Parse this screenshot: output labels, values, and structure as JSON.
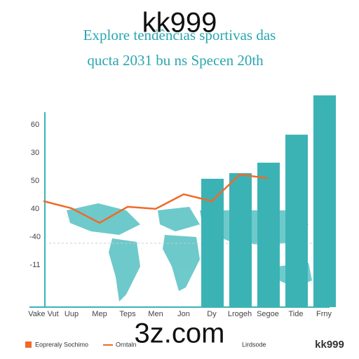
{
  "watermark_top": "kk999",
  "watermark_bottom": "3z.com",
  "logo": "kk999",
  "chart_data": {
    "type": "bar-line",
    "title": "Explore tendências sportivas das",
    "subtitle": "qucta 2031 bu ns Specen 20th",
    "categories": [
      "Vake Vut",
      "Uup",
      "Mep",
      "Teps",
      "Men",
      "Jon",
      "Dy",
      "Lrogeh",
      "Segoe",
      "Tide",
      "Frny"
    ],
    "y_labels": [
      "60",
      "30",
      "50",
      "40",
      "-40",
      "-11"
    ],
    "ylim": [
      0,
      105
    ],
    "series": [
      {
        "name": "Eopreraly Sochimo",
        "kind": "bar",
        "color": "#3bb3b5",
        "values": [
          null,
          null,
          null,
          null,
          null,
          null,
          61.4,
          64.1,
          69.1,
          82.5,
          101.3
        ]
      },
      {
        "name": "Orntaln",
        "kind": "line",
        "color": "#f06a28",
        "values": [
          50.7,
          47.3,
          40.3,
          48.0,
          47.0,
          54.0,
          50.7,
          63.4,
          61.7,
          null,
          null
        ]
      }
    ],
    "extra_legend": "Lirdsode"
  }
}
